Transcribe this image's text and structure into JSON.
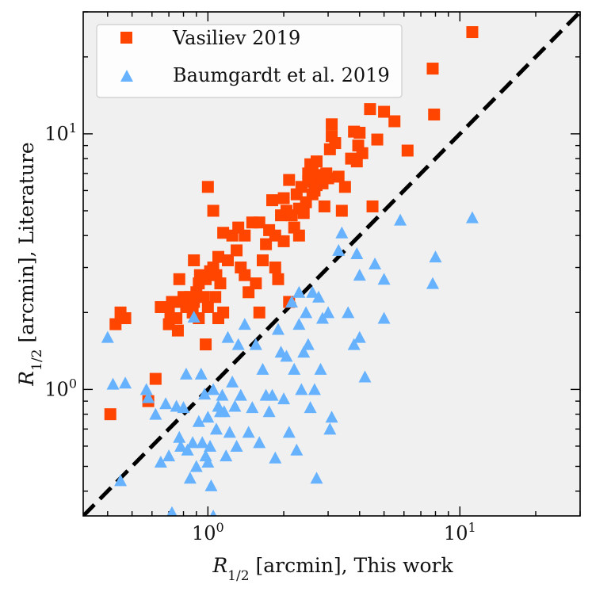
{
  "chart_data": {
    "type": "scatter",
    "x_scale": "log",
    "y_scale": "log",
    "xlim": [
      0.32,
      30
    ],
    "ylim": [
      0.32,
      30
    ],
    "xlabel_main": "R",
    "xlabel_sub": "1/2",
    "xlabel_rest": " [arcmin],  This work",
    "ylabel_main": "R",
    "ylabel_sub": "1/2",
    "ylabel_rest": " [arcmin],  Literature",
    "x_tick_labels": [
      {
        "value": 1,
        "base": "10",
        "exp": "0"
      },
      {
        "value": 10,
        "base": "10",
        "exp": "1"
      }
    ],
    "y_tick_labels": [
      {
        "value": 1,
        "base": "10",
        "exp": "0"
      },
      {
        "value": 10,
        "base": "10",
        "exp": "1"
      }
    ],
    "reference_line": {
      "name": "one-to-one",
      "style": "dashed",
      "color": "#000000"
    },
    "legend_position": "top-left",
    "background": "#f0f0f0",
    "series": [
      {
        "name": "Vasiliev 2019",
        "marker": "square",
        "color": "#ff4500",
        "points": [
          [
            0.41,
            0.8
          ],
          [
            0.43,
            1.8
          ],
          [
            0.45,
            2.0
          ],
          [
            0.47,
            1.9
          ],
          [
            0.58,
            0.9
          ],
          [
            0.62,
            1.1
          ],
          [
            0.65,
            2.1
          ],
          [
            0.7,
            1.8
          ],
          [
            0.7,
            2.1
          ],
          [
            0.71,
            1.9
          ],
          [
            0.72,
            2.2
          ],
          [
            0.75,
            1.9
          ],
          [
            0.76,
            1.7
          ],
          [
            0.77,
            2.7
          ],
          [
            0.8,
            2.2
          ],
          [
            0.8,
            2.3
          ],
          [
            0.82,
            2.1
          ],
          [
            0.85,
            2.3
          ],
          [
            0.87,
            2.0
          ],
          [
            0.88,
            2.2
          ],
          [
            0.88,
            3.2
          ],
          [
            0.9,
            2.4
          ],
          [
            0.92,
            2.6
          ],
          [
            0.92,
            1.9
          ],
          [
            0.93,
            2.8
          ],
          [
            0.96,
            2.3
          ],
          [
            0.98,
            2.7
          ],
          [
            0.98,
            1.5
          ],
          [
            1.0,
            2.1
          ],
          [
            1.0,
            6.2
          ],
          [
            1.02,
            2.9
          ],
          [
            1.05,
            3.0
          ],
          [
            1.05,
            5.0
          ],
          [
            1.07,
            2.3
          ],
          [
            1.08,
            2.8
          ],
          [
            1.1,
            1.9
          ],
          [
            1.1,
            3.3
          ],
          [
            1.12,
            2.6
          ],
          [
            1.15,
            2.0
          ],
          [
            1.15,
            4.1
          ],
          [
            1.2,
            3.2
          ],
          [
            1.25,
            4.0
          ],
          [
            1.3,
            3.5
          ],
          [
            1.32,
            4.3
          ],
          [
            1.35,
            3.0
          ],
          [
            1.4,
            2.8
          ],
          [
            1.4,
            4.0
          ],
          [
            1.45,
            2.4
          ],
          [
            1.5,
            4.5
          ],
          [
            1.55,
            2.6
          ],
          [
            1.6,
            2.0
          ],
          [
            1.6,
            4.5
          ],
          [
            1.65,
            3.2
          ],
          [
            1.7,
            3.7
          ],
          [
            1.75,
            4.2
          ],
          [
            1.8,
            5.5
          ],
          [
            1.85,
            3.0
          ],
          [
            1.85,
            4.0
          ],
          [
            1.9,
            2.7
          ],
          [
            1.95,
            4.8
          ],
          [
            2.0,
            3.8
          ],
          [
            2.0,
            5.6
          ],
          [
            2.05,
            5.0
          ],
          [
            2.1,
            2.2
          ],
          [
            2.1,
            6.6
          ],
          [
            2.15,
            4.8
          ],
          [
            2.2,
            4.3
          ],
          [
            2.25,
            5.8
          ],
          [
            2.3,
            4.0
          ],
          [
            2.3,
            5.1
          ],
          [
            2.35,
            6.2
          ],
          [
            2.4,
            4.9
          ],
          [
            2.45,
            5.4
          ],
          [
            2.5,
            6.5
          ],
          [
            2.5,
            7.0
          ],
          [
            2.55,
            7.6
          ],
          [
            2.6,
            5.8
          ],
          [
            2.6,
            7.2
          ],
          [
            2.65,
            6.0
          ],
          [
            2.7,
            6.3
          ],
          [
            2.7,
            7.8
          ],
          [
            2.75,
            6.6
          ],
          [
            2.8,
            6.9
          ],
          [
            2.85,
            6.4
          ],
          [
            2.9,
            5.2
          ],
          [
            2.95,
            7.0
          ],
          [
            3.0,
            6.7
          ],
          [
            3.05,
            8.7
          ],
          [
            3.1,
            9.8
          ],
          [
            3.1,
            10.9
          ],
          [
            3.2,
            9.2
          ],
          [
            3.3,
            6.8
          ],
          [
            3.4,
            5.0
          ],
          [
            3.5,
            6.2
          ],
          [
            3.7,
            8.0
          ],
          [
            3.8,
            10.2
          ],
          [
            3.9,
            7.8
          ],
          [
            3.95,
            9.0
          ],
          [
            4.0,
            10.1
          ],
          [
            4.1,
            8.4
          ],
          [
            4.4,
            12.5
          ],
          [
            4.5,
            5.2
          ],
          [
            4.7,
            9.5
          ],
          [
            5.0,
            12.2
          ],
          [
            5.5,
            11.2
          ],
          [
            6.2,
            8.6
          ],
          [
            7.8,
            18.0
          ],
          [
            7.9,
            11.9
          ],
          [
            11.2,
            25.0
          ]
        ]
      },
      {
        "name": "Baumgardt et al. 2019",
        "marker": "triangle",
        "color": "#66b2ff",
        "points": [
          [
            0.4,
            1.6
          ],
          [
            0.42,
            1.05
          ],
          [
            0.45,
            0.44
          ],
          [
            0.47,
            1.06
          ],
          [
            0.57,
            1.0
          ],
          [
            0.58,
            0.93
          ],
          [
            0.62,
            0.8
          ],
          [
            0.65,
            0.52
          ],
          [
            0.68,
            0.88
          ],
          [
            0.7,
            0.55
          ],
          [
            0.72,
            0.33
          ],
          [
            0.75,
            0.86
          ],
          [
            0.77,
            0.65
          ],
          [
            0.78,
            0.6
          ],
          [
            0.8,
            0.85
          ],
          [
            0.82,
            1.15
          ],
          [
            0.83,
            0.58
          ],
          [
            0.85,
            0.45
          ],
          [
            0.87,
            0.62
          ],
          [
            0.88,
            1.92
          ],
          [
            0.9,
            0.5
          ],
          [
            0.92,
            0.75
          ],
          [
            0.94,
            1.15
          ],
          [
            0.95,
            0.62
          ],
          [
            0.97,
            0.96
          ],
          [
            0.98,
            0.55
          ],
          [
            1.0,
            0.52
          ],
          [
            1.0,
            0.78
          ],
          [
            1.02,
            0.6
          ],
          [
            1.03,
            0.42
          ],
          [
            1.05,
            1.0
          ],
          [
            1.05,
            0.32
          ],
          [
            1.08,
            0.7
          ],
          [
            1.1,
            0.86
          ],
          [
            1.12,
            0.82
          ],
          [
            1.14,
            0.95
          ],
          [
            1.16,
            0.82
          ],
          [
            1.18,
            0.55
          ],
          [
            1.2,
            1.6
          ],
          [
            1.22,
            0.68
          ],
          [
            1.25,
            1.07
          ],
          [
            1.28,
            0.86
          ],
          [
            1.3,
            0.6
          ],
          [
            1.32,
            1.5
          ],
          [
            1.35,
            0.95
          ],
          [
            1.4,
            1.8
          ],
          [
            1.45,
            0.68
          ],
          [
            1.5,
            0.85
          ],
          [
            1.55,
            1.5
          ],
          [
            1.6,
            0.62
          ],
          [
            1.65,
            1.2
          ],
          [
            1.7,
            0.95
          ],
          [
            1.75,
            0.82
          ],
          [
            1.8,
            0.95
          ],
          [
            1.85,
            0.54
          ],
          [
            1.9,
            1.72
          ],
          [
            1.95,
            1.4
          ],
          [
            2.0,
            0.92
          ],
          [
            2.05,
            1.35
          ],
          [
            2.1,
            0.68
          ],
          [
            2.15,
            2.2
          ],
          [
            2.2,
            1.2
          ],
          [
            2.25,
            0.58
          ],
          [
            2.3,
            2.4
          ],
          [
            2.3,
            1.8
          ],
          [
            2.35,
            1.0
          ],
          [
            2.4,
            1.4
          ],
          [
            2.45,
            2.0
          ],
          [
            2.5,
            1.5
          ],
          [
            2.55,
            0.85
          ],
          [
            2.6,
            2.4
          ],
          [
            2.65,
            1.0
          ],
          [
            2.7,
            0.45
          ],
          [
            2.75,
            2.3
          ],
          [
            2.8,
            1.2
          ],
          [
            2.85,
            1.9
          ],
          [
            3.0,
            2.0
          ],
          [
            3.05,
            0.7
          ],
          [
            3.1,
            0.78
          ],
          [
            3.3,
            3.5
          ],
          [
            3.4,
            4.1
          ],
          [
            3.6,
            2.0
          ],
          [
            3.8,
            1.5
          ],
          [
            3.9,
            3.4
          ],
          [
            4.0,
            1.6
          ],
          [
            4.0,
            2.8
          ],
          [
            4.2,
            1.12
          ],
          [
            4.6,
            3.1
          ],
          [
            5.0,
            1.9
          ],
          [
            5.0,
            2.7
          ],
          [
            5.8,
            4.6
          ],
          [
            7.8,
            2.6
          ],
          [
            8.0,
            3.3
          ],
          [
            11.2,
            4.7
          ]
        ]
      }
    ]
  }
}
